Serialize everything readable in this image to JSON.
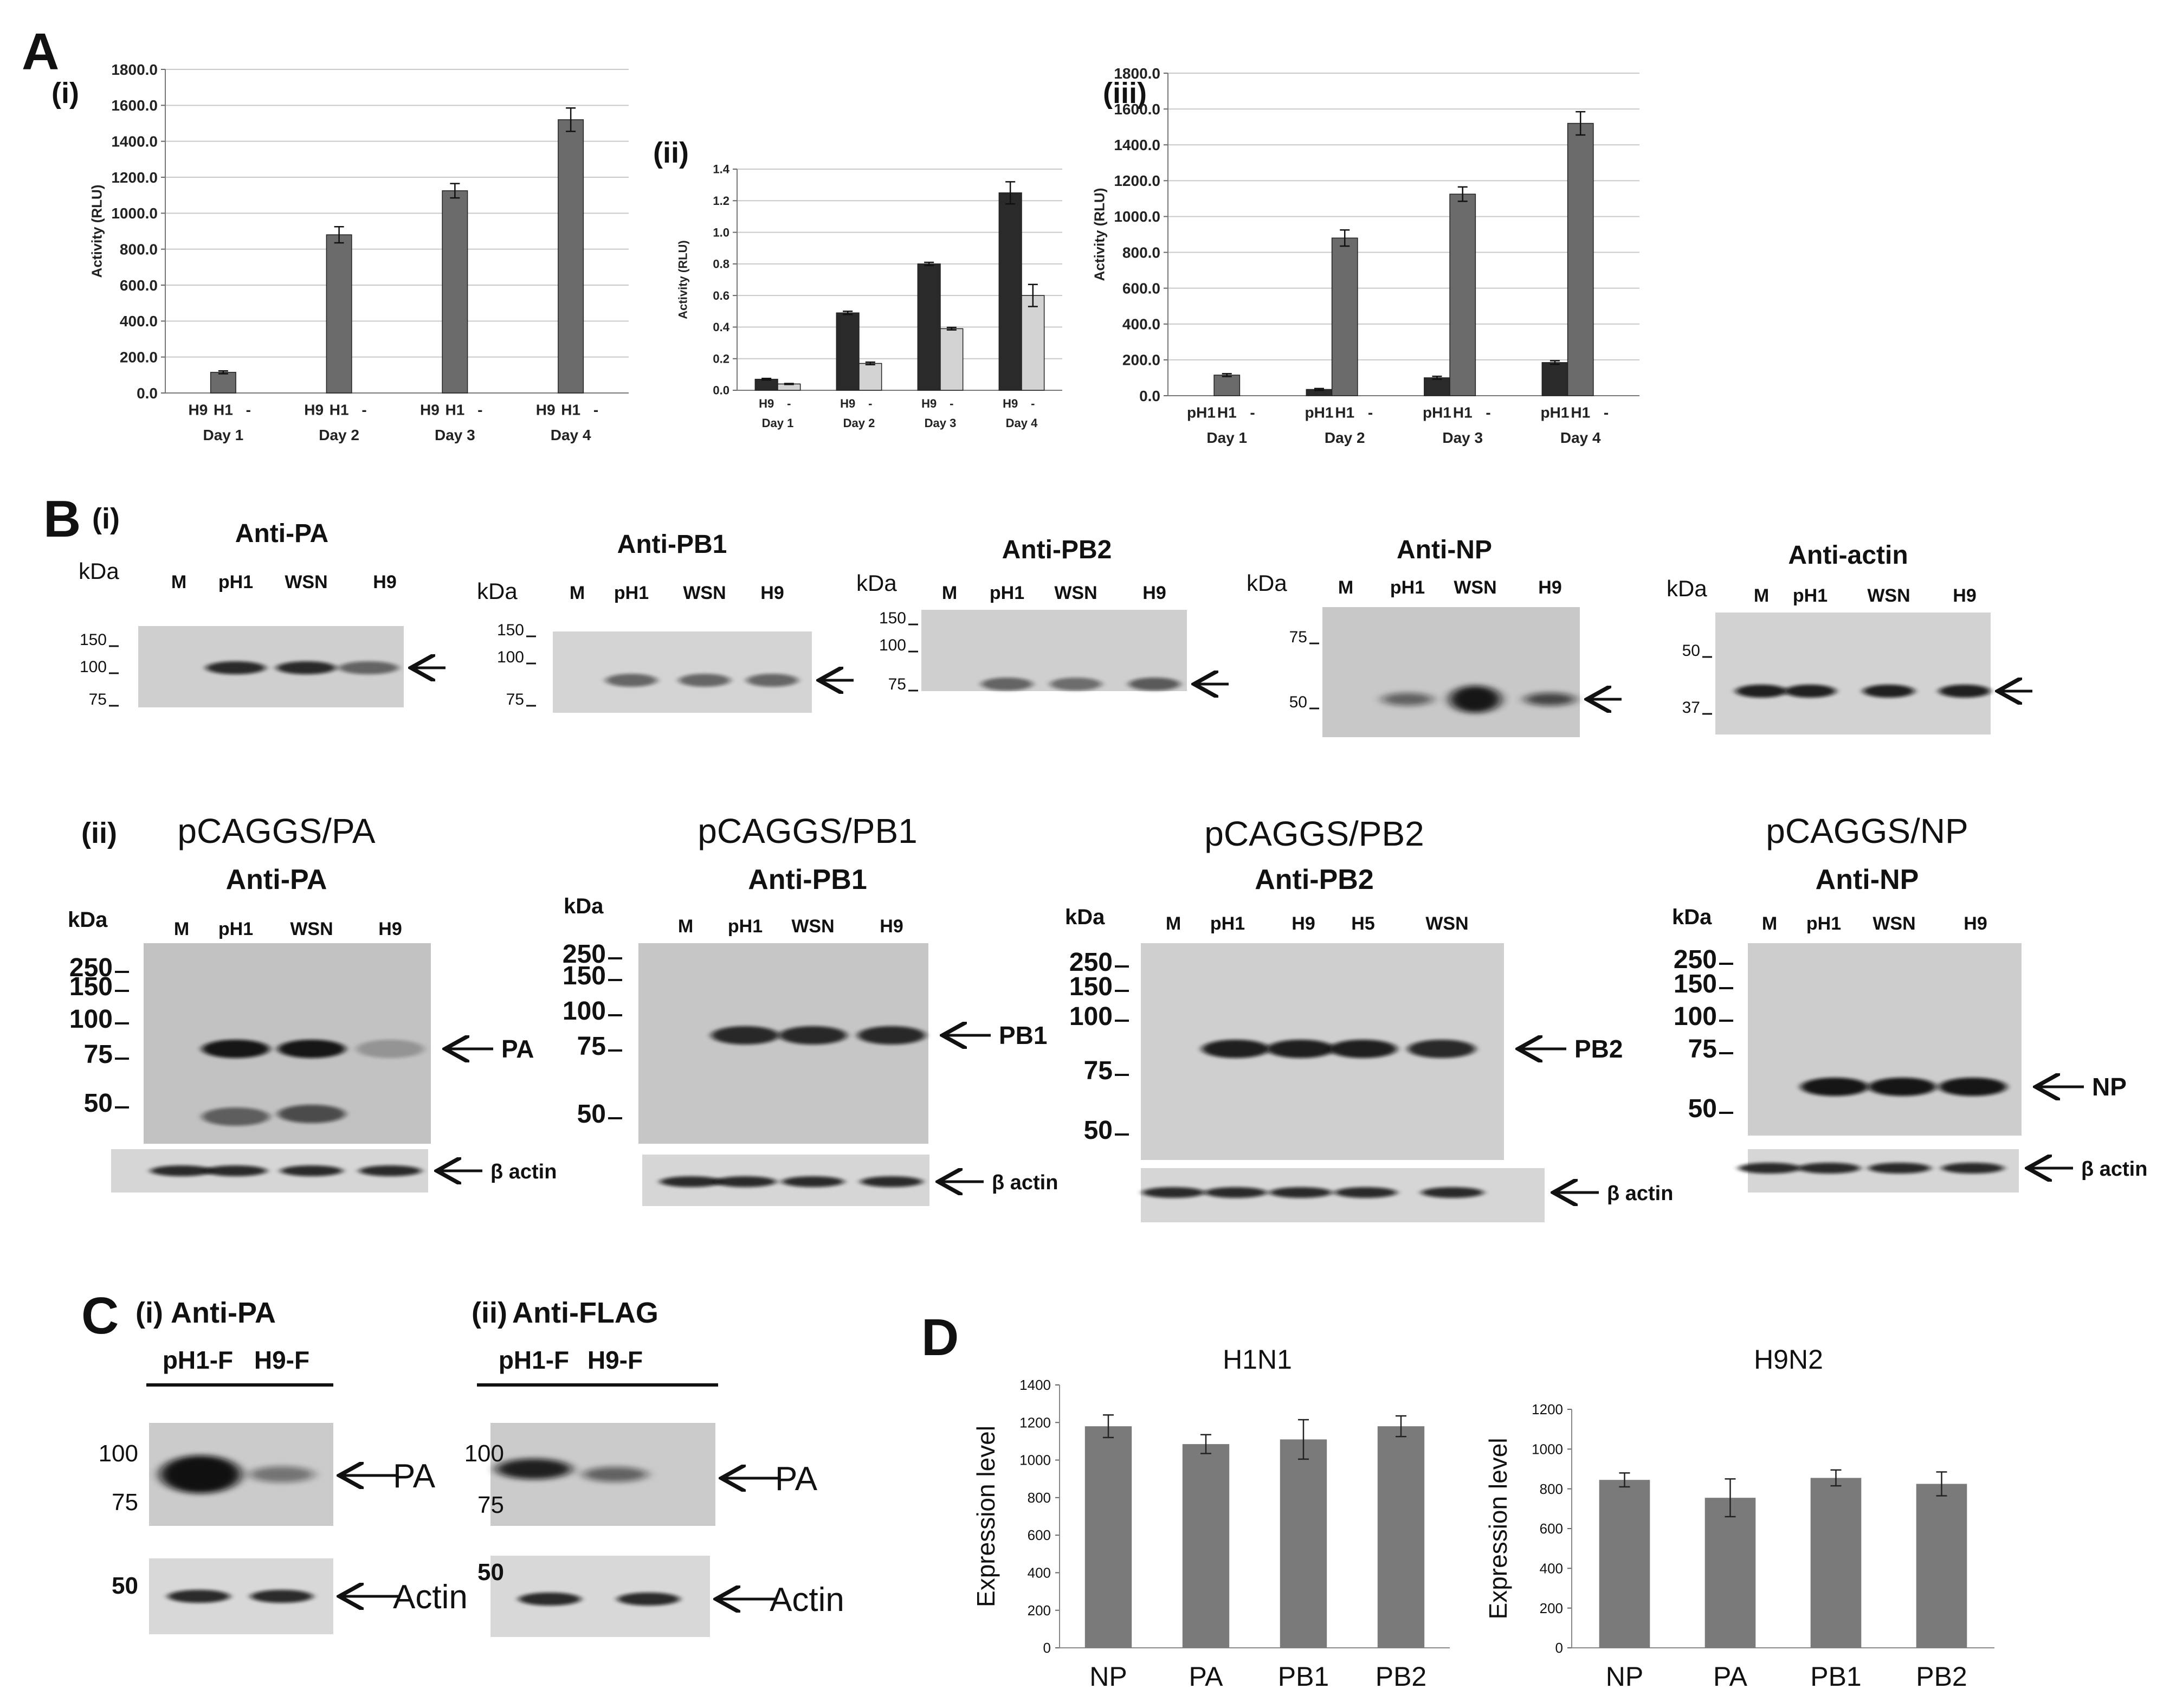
{
  "panel_letters": {
    "A": "A",
    "B": "B",
    "C": "C",
    "D": "D"
  },
  "sub_labels": {
    "i": "(i)",
    "ii": "(ii)",
    "iii": "(iii)"
  },
  "chart_data": [
    {
      "id": "A-i",
      "type": "bar",
      "panel": "(i)",
      "ylabel": "Activity (RLU)",
      "ylim": [
        0,
        1800
      ],
      "yticks": [
        "0.0",
        "200.0",
        "400.0",
        "600.0",
        "800.0",
        "1000.0",
        "1200.0",
        "1400.0",
        "1600.0",
        "1800.0"
      ],
      "groups": [
        "Day 1",
        "Day 2",
        "Day 3",
        "Day 4"
      ],
      "bar_labels": [
        "H9",
        "H1",
        "-"
      ],
      "series": [
        {
          "name": "H9",
          "color": "#2a2a2a",
          "values": [
            0,
            0,
            0,
            0
          ],
          "errors": [
            0,
            0,
            0,
            0
          ]
        },
        {
          "name": "H1",
          "color": "#6b6b6b",
          "values": [
            115,
            880,
            1125,
            1520
          ],
          "errors": [
            8,
            45,
            40,
            65
          ]
        },
        {
          "name": "-",
          "color": "#cfcfcf",
          "values": [
            0,
            0,
            0,
            0
          ],
          "errors": [
            0,
            0,
            0,
            0
          ]
        }
      ]
    },
    {
      "id": "A-ii",
      "type": "bar",
      "panel": "(ii)",
      "ylabel": "Activity (RLU)",
      "ylim": [
        0,
        1.4
      ],
      "yticks": [
        "0.0",
        "0.2",
        "0.4",
        "0.6",
        "0.8",
        "1.0",
        "1.2",
        "1.4"
      ],
      "groups": [
        "Day 1",
        "Day 2",
        "Day 3",
        "Day 4"
      ],
      "bar_labels": [
        "H9",
        "-"
      ],
      "series": [
        {
          "name": "H9",
          "color": "#2a2a2a",
          "values": [
            0.07,
            0.49,
            0.8,
            1.25
          ],
          "errors": [
            0.005,
            0.01,
            0.01,
            0.07
          ]
        },
        {
          "name": "-",
          "color": "#d3d3d3",
          "values": [
            0.04,
            0.17,
            0.39,
            0.6
          ],
          "errors": [
            0.003,
            0.008,
            0.008,
            0.07
          ]
        }
      ]
    },
    {
      "id": "A-iii",
      "type": "bar",
      "panel": "(iii)",
      "ylabel": "Activity (RLU)",
      "ylim": [
        0,
        1800
      ],
      "yticks": [
        "0.0",
        "200.0",
        "400.0",
        "600.0",
        "800.0",
        "1000.0",
        "1200.0",
        "1400.0",
        "1600.0",
        "1800.0"
      ],
      "groups": [
        "Day 1",
        "Day 2",
        "Day 3",
        "Day 4"
      ],
      "bar_labels": [
        "pH1",
        "H1",
        "-"
      ],
      "series": [
        {
          "name": "pH1",
          "color": "#2a2a2a",
          "values": [
            0,
            35,
            100,
            185
          ],
          "errors": [
            0,
            5,
            8,
            10
          ]
        },
        {
          "name": "H1",
          "color": "#6b6b6b",
          "values": [
            115,
            880,
            1125,
            1520
          ],
          "errors": [
            8,
            45,
            40,
            65
          ]
        },
        {
          "name": "-",
          "color": "#cfcfcf",
          "values": [
            0,
            0,
            0,
            0
          ],
          "errors": [
            0,
            0,
            0,
            0
          ]
        }
      ]
    },
    {
      "id": "D-H1N1",
      "type": "bar",
      "title": "H1N1",
      "ylabel": "Expression level",
      "ylim": [
        0,
        1400
      ],
      "yticks": [
        "0",
        "200",
        "400",
        "600",
        "800",
        "1000",
        "1200",
        "1400"
      ],
      "categories": [
        "NP",
        "PA",
        "PB1",
        "PB2"
      ],
      "values": [
        1180,
        1085,
        1110,
        1180
      ],
      "errors": [
        60,
        50,
        105,
        55
      ],
      "color": "#7a7a7a"
    },
    {
      "id": "D-H9N2",
      "type": "bar",
      "title": "H9N2",
      "ylabel": "Expression level",
      "ylim": [
        0,
        1200
      ],
      "yticks": [
        "0",
        "200",
        "400",
        "600",
        "800",
        "1000",
        "1200"
      ],
      "categories": [
        "NP",
        "PA",
        "PB1",
        "PB2"
      ],
      "values": [
        845,
        755,
        855,
        825
      ],
      "errors": [
        35,
        95,
        40,
        60
      ],
      "color": "#7a7a7a"
    }
  ],
  "blots_B_i": [
    {
      "title": "Anti-PA",
      "lanes": [
        "M",
        "pH1",
        "WSN",
        "H9"
      ],
      "markers": [
        "150",
        "100",
        "75"
      ]
    },
    {
      "title": "Anti-PB1",
      "lanes": [
        "M",
        "pH1",
        "WSN",
        "H9"
      ],
      "markers": [
        "150",
        "100",
        "75"
      ]
    },
    {
      "title": "Anti-PB2",
      "lanes": [
        "M",
        "pH1",
        "WSN",
        "H9"
      ],
      "markers": [
        "150",
        "100",
        "75"
      ]
    },
    {
      "title": "Anti-NP",
      "lanes": [
        "M",
        "pH1",
        "WSN",
        "H9"
      ],
      "markers": [
        "75",
        "50"
      ]
    },
    {
      "title": "Anti-actin",
      "lanes": [
        "M",
        "pH1",
        "WSN",
        "H9"
      ],
      "markers": [
        "50",
        "37"
      ]
    }
  ],
  "blots_B_ii": [
    {
      "construct": "pCAGGS/PA",
      "title": "Anti-PA",
      "lanes": [
        "M",
        "pH1",
        "WSN",
        "H9"
      ],
      "markers": [
        "250",
        "150",
        "100",
        "75",
        "50"
      ],
      "band": "PA",
      "loading": "β actin"
    },
    {
      "construct": "pCAGGS/PB1",
      "title": "Anti-PB1",
      "lanes": [
        "M",
        "pH1",
        "WSN",
        "H9"
      ],
      "markers": [
        "250",
        "150",
        "100",
        "75",
        "50"
      ],
      "band": "PB1",
      "loading": "β actin"
    },
    {
      "construct": "pCAGGS/PB2",
      "title": "Anti-PB2",
      "lanes": [
        "M",
        "pH1",
        "H9",
        "H5",
        "WSN"
      ],
      "markers": [
        "250",
        "150",
        "100",
        "75",
        "50"
      ],
      "band": "PB2",
      "loading": "β actin"
    },
    {
      "construct": "pCAGGS/NP",
      "title": "Anti-NP",
      "lanes": [
        "M",
        "pH1",
        "WSN",
        "H9"
      ],
      "markers": [
        "250",
        "150",
        "100",
        "75",
        "50"
      ],
      "band": "NP",
      "loading": "β actin"
    }
  ],
  "kda": "kDa",
  "blots_C": [
    {
      "title": "Anti-PA",
      "lanes": [
        "pH1-F",
        "H9-F"
      ],
      "markers": [
        "100",
        "75"
      ],
      "actin_marker": "50",
      "band": "PA",
      "loading": "Actin"
    },
    {
      "title": "Anti-FLAG",
      "lanes": [
        "pH1-F",
        "H9-F"
      ],
      "markers": [
        "100",
        "75"
      ],
      "actin_marker": "50",
      "band": "PA",
      "loading": "Actin"
    }
  ]
}
